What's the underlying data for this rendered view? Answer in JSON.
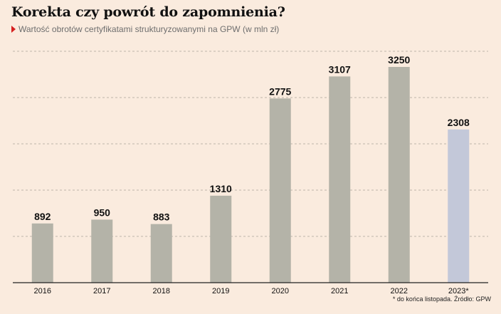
{
  "header": {
    "title": "Korekta czy powrót do zapomnienia?",
    "subtitle": "Wartość obrotów certyfikatami strukturyzowanymi na GPW (w mln zł)",
    "marker_color": "#d62020"
  },
  "footnote": "* do końca listopada. Źródło: GPW",
  "colors": {
    "bar": "#b4b3a8",
    "bar_highlight": "#c3c8d9",
    "grid": "#a9a39b",
    "background": "#faebde"
  },
  "chart_data": {
    "type": "bar",
    "categories": [
      "2016",
      "2017",
      "2018",
      "2019",
      "2020",
      "2021",
      "2022",
      "2023*"
    ],
    "values": [
      892,
      950,
      883,
      1310,
      2775,
      3107,
      3250,
      2308
    ],
    "highlight_index": 7,
    "ylim": [
      0,
      3250
    ],
    "grid": true,
    "legend": "none"
  }
}
